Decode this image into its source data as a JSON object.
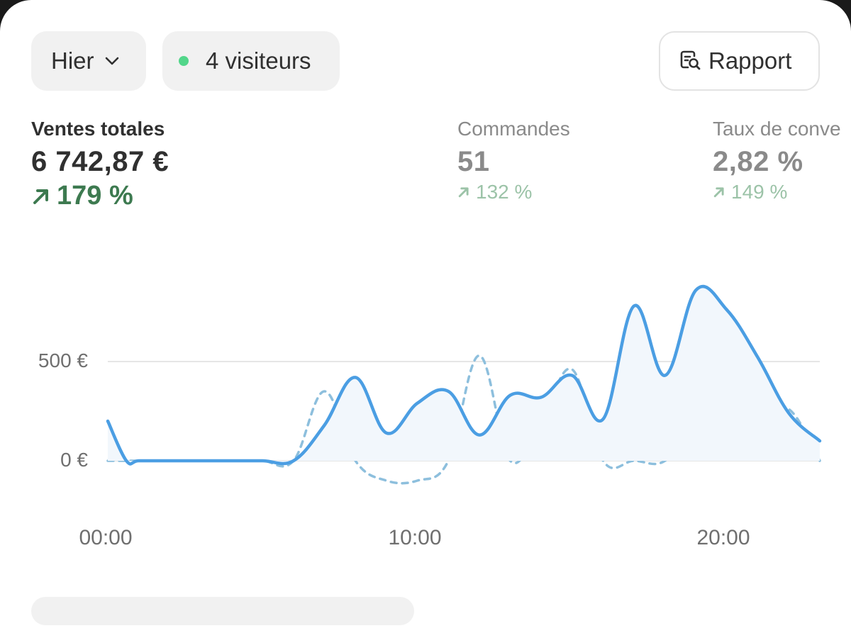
{
  "filters": {
    "date_label": "Hier",
    "visitors_label": "4 visiteurs",
    "report_label": "Rapport",
    "status_color": "#52d68a"
  },
  "metrics": [
    {
      "title": "Ventes totales",
      "value": "6 742,87 €",
      "delta": "179 %",
      "active": true
    },
    {
      "title": "Commandes",
      "value": "51",
      "delta": "132 %",
      "active": false
    },
    {
      "title": "Taux de conve",
      "value": "2,82 %",
      "delta": "149 %",
      "active": false
    }
  ],
  "chart_data": {
    "type": "line",
    "x": [
      0,
      0.6,
      1,
      2,
      3,
      4,
      5,
      6,
      7,
      8,
      9,
      10,
      11,
      12,
      13,
      14,
      15,
      16,
      17,
      18,
      19,
      20,
      21,
      22,
      23
    ],
    "series": [
      {
        "values": [
          200,
          0,
          0,
          0,
          0,
          0,
          0,
          0,
          180,
          420,
          140,
          290,
          350,
          130,
          330,
          320,
          430,
          210,
          780,
          430,
          860,
          760,
          520,
          240,
          100
        ],
        "color": "#4b9ee3",
        "style": "solid",
        "fill": "#f2f7fc"
      },
      {
        "values": [
          0,
          0,
          0,
          0,
          0,
          0,
          0,
          0,
          350,
          0,
          -100,
          -100,
          0,
          530,
          0,
          200,
          460,
          0,
          0,
          0,
          200,
          400,
          210,
          260,
          0
        ],
        "color": "#8dbfdd",
        "style": "dashed"
      }
    ],
    "y_ticks": [
      {
        "value": 0,
        "label": "0 €"
      },
      {
        "value": 500,
        "label": "500 €"
      }
    ],
    "x_ticks": [
      {
        "value": 0,
        "label": "00:00"
      },
      {
        "value": 10,
        "label": "10:00"
      },
      {
        "value": 20,
        "label": "20:00"
      }
    ],
    "xlim": [
      0,
      23
    ],
    "ylim": [
      -100,
      860
    ],
    "grid": true
  },
  "colors": {
    "positive_active": "#3d7a50",
    "positive_dim": "#9cc3a8"
  }
}
